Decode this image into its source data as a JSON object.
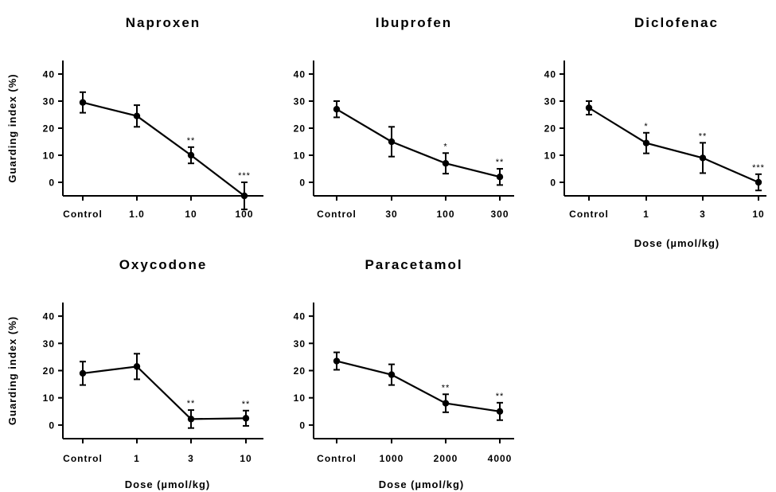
{
  "chart_data": [
    {
      "type": "line",
      "title": "Naproxen",
      "ylabel": "Guarding index (%)",
      "xlabel": "",
      "categories": [
        "Control",
        "1.0",
        "10",
        "100"
      ],
      "values": [
        29.5,
        24.5,
        10,
        -5
      ],
      "errors": [
        3.8,
        4,
        3,
        5
      ],
      "significance": [
        "",
        "",
        "**",
        "***"
      ],
      "yticks": [
        0,
        10,
        20,
        30,
        40
      ],
      "ylim": [
        -5,
        45
      ]
    },
    {
      "type": "line",
      "title": "Ibuprofen",
      "ylabel": "",
      "xlabel": "",
      "categories": [
        "Control",
        "30",
        "100",
        "300"
      ],
      "values": [
        27,
        15,
        7,
        2
      ],
      "errors": [
        3,
        5.5,
        3.8,
        3
      ],
      "significance": [
        "",
        "",
        "*",
        "**"
      ],
      "yticks": [
        0,
        10,
        20,
        30,
        40
      ],
      "ylim": [
        -5,
        45
      ]
    },
    {
      "type": "line",
      "title": "Diclofenac",
      "ylabel": "",
      "xlabel": "Dose (µmol/kg)",
      "categories": [
        "Control",
        "1",
        "3",
        "10"
      ],
      "values": [
        27.5,
        14.5,
        9,
        0
      ],
      "errors": [
        2.5,
        3.8,
        5.6,
        3
      ],
      "significance": [
        "",
        "*",
        "**",
        "***"
      ],
      "yticks": [
        0,
        10,
        20,
        30,
        40
      ],
      "ylim": [
        -5,
        45
      ]
    },
    {
      "type": "line",
      "title": "Oxycodone",
      "ylabel": "Guarding index (%)",
      "xlabel": "Dose (µmol/kg)",
      "categories": [
        "Control",
        "1",
        "3",
        "10"
      ],
      "values": [
        19,
        21.5,
        2.2,
        2.5
      ],
      "errors": [
        4.3,
        4.7,
        3.3,
        2.8
      ],
      "significance": [
        "",
        "",
        "**",
        "**"
      ],
      "yticks": [
        0,
        10,
        20,
        30,
        40
      ],
      "ylim": [
        -5,
        45
      ]
    },
    {
      "type": "line",
      "title": "Paracetamol",
      "ylabel": "",
      "xlabel": "Dose (µmol/kg)",
      "categories": [
        "Control",
        "1000",
        "2000",
        "4000"
      ],
      "values": [
        23.5,
        18.5,
        8,
        5
      ],
      "errors": [
        3.2,
        3.8,
        3.3,
        3.2
      ],
      "significance": [
        "",
        "",
        "**",
        "**"
      ],
      "yticks": [
        0,
        10,
        20,
        30,
        40
      ],
      "ylim": [
        -5,
        45
      ]
    }
  ],
  "colors": {
    "ink": "#000000",
    "background": "#ffffff"
  }
}
